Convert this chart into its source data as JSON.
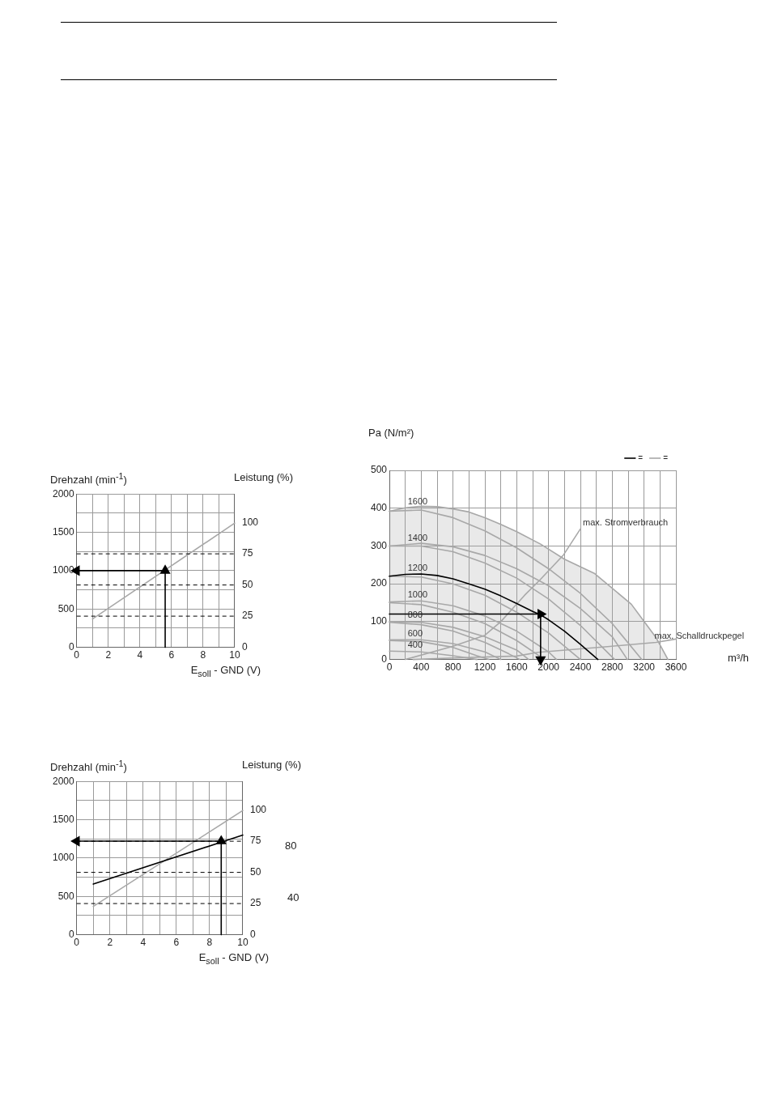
{
  "chart_data": [
    {
      "type": "line",
      "xlabel": "E$_{soll}$ - GND (V)",
      "ylabel": "Drehzahl (min$^{-1}$)",
      "y2label": "Leistung (%)",
      "xlim": [
        0,
        10
      ],
      "xticks": [
        0,
        {
          "value": 1,
          "label": null
        },
        2,
        {
          "value": 3,
          "label": null
        },
        4,
        {
          "value": 5,
          "label": null
        },
        6,
        {
          "value": 7,
          "label": null
        },
        8,
        {
          "value": 9,
          "label": null
        },
        10
      ],
      "ylim": [
        0,
        2000
      ],
      "yticks": [
        0,
        {
          "value": 250,
          "label": null
        },
        500,
        {
          "value": 750,
          "label": null
        },
        1000,
        {
          "value": 1250,
          "label": null
        },
        1500,
        {
          "value": 1750,
          "label": null
        },
        2000
      ],
      "y2lim": [
        0,
        123
      ],
      "y2ticks": [
        0,
        25,
        50,
        75,
        100
      ],
      "grid": true,
      "ref_lines": [
        {
          "axis": "y2",
          "value": 25,
          "color": "#000000",
          "line_style": "dashed"
        },
        {
          "axis": "y2",
          "value": 50,
          "color": "#000000",
          "line_style": "dashed"
        },
        {
          "axis": "y2",
          "value": 75,
          "color": "#000000",
          "line_style": "dashed"
        }
      ],
      "series": [
        {
          "color": "#000000",
          "x": [
            5.6,
            5.6
          ],
          "values": [
            0,
            1000
          ],
          "marker": "triangle"
        },
        {
          "color": "#000000",
          "x": [
            5.6,
            0
          ],
          "values": [
            1000,
            1000
          ],
          "marker": "triangle"
        },
        {
          "color": "#a8a8a8",
          "x": [
            1,
            10
          ],
          "values": [
            370,
            1620
          ]
        }
      ]
    },
    {
      "type": "line",
      "xlabel": "E$_{soll}$ - GND (V)",
      "ylabel": "Drehzahl (min$^{-1}$)",
      "y2label": "Leistung (%)",
      "xlim": [
        0,
        10
      ],
      "xticks": [
        0,
        {
          "value": 1,
          "label": null
        },
        2,
        {
          "value": 3,
          "label": null
        },
        4,
        {
          "value": 5,
          "label": null
        },
        6,
        {
          "value": 7,
          "label": null
        },
        8,
        {
          "value": 9,
          "label": null
        },
        10
      ],
      "ylim": [
        0,
        2000
      ],
      "yticks": [
        0,
        {
          "value": 250,
          "label": null
        },
        500,
        {
          "value": 750,
          "label": null
        },
        1000,
        {
          "value": 1250,
          "label": null
        },
        1500,
        {
          "value": 1750,
          "label": null
        },
        2000
      ],
      "y2lim": [
        0,
        123
      ],
      "y2ticks": [
        0,
        25,
        50,
        75,
        100
      ],
      "grid": true,
      "annotations": [
        "80",
        "40"
      ],
      "ref_lines": [
        {
          "axis": "y2",
          "value": 25,
          "color": "#000000",
          "line_style": "dashed"
        },
        {
          "axis": "y2",
          "value": 50,
          "color": "#000000",
          "line_style": "dashed"
        },
        {
          "axis": "y2",
          "value": 75,
          "color": "#000000",
          "line_style": "dashed"
        }
      ],
      "series": [
        {
          "color": "#000000",
          "x": [
            8.7,
            8.7
          ],
          "values": [
            0,
            1220
          ],
          "marker": "triangle"
        },
        {
          "color": "#000000",
          "x": [
            8.7,
            0
          ],
          "values": [
            1220,
            1220
          ],
          "marker": "triangle"
        },
        {
          "color": "#000000",
          "x": [
            1,
            10
          ],
          "values": [
            660,
            1300
          ]
        },
        {
          "color": "#a8a8a8",
          "x": [
            1,
            10
          ],
          "values": [
            370,
            1620
          ]
        }
      ]
    },
    {
      "type": "line",
      "xlabel": "m³/h",
      "ylabel": "Pa (N/m²)",
      "xlim": [
        0,
        3600
      ],
      "xticks": [
        0,
        {
          "value": 200,
          "label": null
        },
        400,
        {
          "value": 600,
          "label": null
        },
        800,
        {
          "value": 1000,
          "label": null
        },
        1200,
        {
          "value": 1400,
          "label": null
        },
        1600,
        {
          "value": 1800,
          "label": null
        },
        2000,
        {
          "value": 2200,
          "label": null
        },
        2400,
        {
          "value": 2600,
          "label": null
        },
        2800,
        {
          "value": 3000,
          "label": null
        },
        3200,
        {
          "value": 3400,
          "label": null
        },
        3600
      ],
      "ylim": [
        0,
        500
      ],
      "yticks": [
        0,
        100,
        200,
        300,
        400,
        500
      ],
      "grid": true,
      "legend": "top right",
      "annotations": [
        {
          "text": "1600",
          "x": 200,
          "y": 401
        },
        {
          "text": "1400",
          "x": 200,
          "y": 305
        },
        {
          "text": "1200",
          "x": 200,
          "y": 225
        },
        {
          "text": "1000",
          "x": 200,
          "y": 154
        },
        {
          "text": "800",
          "x": 200,
          "y": 100
        },
        {
          "text": "600",
          "x": 200,
          "y": 52
        },
        {
          "text": "400",
          "x": 200,
          "y": 21
        },
        {
          "text": "max. Stromverbrauch",
          "x": 2400,
          "y": 345
        },
        {
          "text": "max. Schalldruckpegel",
          "x": 3300,
          "y": 45
        }
      ],
      "series": [
        {
          "color": "#000000",
          "x": [
            0,
            1900
          ],
          "values": [
            120,
            120
          ],
          "marker": "triangle"
        },
        {
          "color": "#000000",
          "x": [
            1900,
            1900
          ],
          "values": [
            120,
            0
          ],
          "marker": "triangle"
        },
        {
          "name": "=",
          "color": "#000000",
          "x": [
            0,
            200,
            400,
            600,
            800,
            1000,
            1200,
            1400,
            1600,
            1800,
            1900,
            2000,
            2200,
            2400,
            2620
          ],
          "values": [
            220,
            225,
            226,
            222,
            213,
            200,
            186,
            168,
            148,
            127,
            118,
            105,
            75,
            40,
            0
          ]
        },
        {
          "color": "#a8a8a8",
          "x": [
            0,
            400,
            800,
            1200,
            1600,
            2000,
            2400,
            2800,
            3170
          ],
          "values": [
            392,
            395,
            375,
            340,
            295,
            240,
            175,
            95,
            0
          ]
        },
        {
          "color": "#a8a8a8",
          "x": [
            0,
            400,
            800,
            1200,
            1600,
            2000,
            2400,
            2800,
            2990
          ],
          "values": [
            300,
            307,
            298,
            275,
            240,
            195,
            135,
            60,
            0
          ]
        },
        {
          "color": "#a8a8a8",
          "x": [
            0,
            400,
            800,
            1200,
            1600,
            2000,
            2400,
            2830
          ],
          "values": [
            300,
            300,
            285,
            255,
            215,
            160,
            90,
            0
          ]
        },
        {
          "color": "#a8a8a8",
          "x": [
            0,
            400,
            800,
            1200,
            1600,
            2000,
            2400
          ],
          "values": [
            220,
            218,
            200,
            170,
            125,
            70,
            0
          ]
        },
        {
          "color": "#a8a8a8",
          "x": [
            0,
            400,
            800,
            1200,
            1600,
            2000,
            2100
          ],
          "values": [
            152,
            155,
            142,
            115,
            75,
            20,
            0
          ]
        },
        {
          "color": "#a8a8a8",
          "x": [
            0,
            400,
            800,
            1200,
            1600,
            1950
          ],
          "values": [
            150,
            145,
            125,
            95,
            50,
            0
          ]
        },
        {
          "color": "#a8a8a8",
          "x": [
            0,
            400,
            800,
            1200,
            1600,
            1750
          ],
          "values": [
            100,
            98,
            85,
            60,
            25,
            0
          ]
        },
        {
          "color": "#a8a8a8",
          "x": [
            0,
            400,
            800,
            1200,
            1500,
            1640
          ],
          "values": [
            98,
            92,
            75,
            45,
            15,
            0
          ]
        },
        {
          "color": "#a8a8a8",
          "x": [
            0,
            400,
            800,
            1200,
            1400
          ],
          "values": [
            52,
            52,
            42,
            20,
            0
          ]
        },
        {
          "color": "#a8a8a8",
          "x": [
            0,
            400,
            800,
            1100,
            1250
          ],
          "values": [
            50,
            47,
            32,
            10,
            0
          ]
        },
        {
          "color": "#a8a8a8",
          "x": [
            0,
            400,
            800,
            1100
          ],
          "values": [
            22,
            20,
            10,
            0
          ]
        },
        {
          "color": "#a8a8a8",
          "x": [
            200,
            800,
            1200,
            1400,
            1700,
            1890,
            2190,
            2400
          ],
          "values": [
            0,
            35,
            64,
            100,
            170,
            210,
            277,
            345
          ]
        },
        {
          "color": "#a8a8a8",
          "x": [
            300,
            800,
            1600,
            1870,
            2740,
            3350,
            3600
          ],
          "values": [
            0,
            4,
            9,
            19,
            34,
            45,
            54
          ]
        },
        {
          "name": "=",
          "type": "area",
          "color": "#a8a8a8",
          "x": [
            0,
            200,
            400,
            600,
            800,
            1000,
            1200,
            1400,
            1600,
            1900,
            2200,
            2580,
            3040,
            3350,
            3500
          ],
          "values": [
            392,
            401,
            405,
            404,
            398,
            390,
            375,
            357,
            338,
            305,
            265,
            227,
            146,
            58,
            0
          ]
        }
      ]
    }
  ]
}
